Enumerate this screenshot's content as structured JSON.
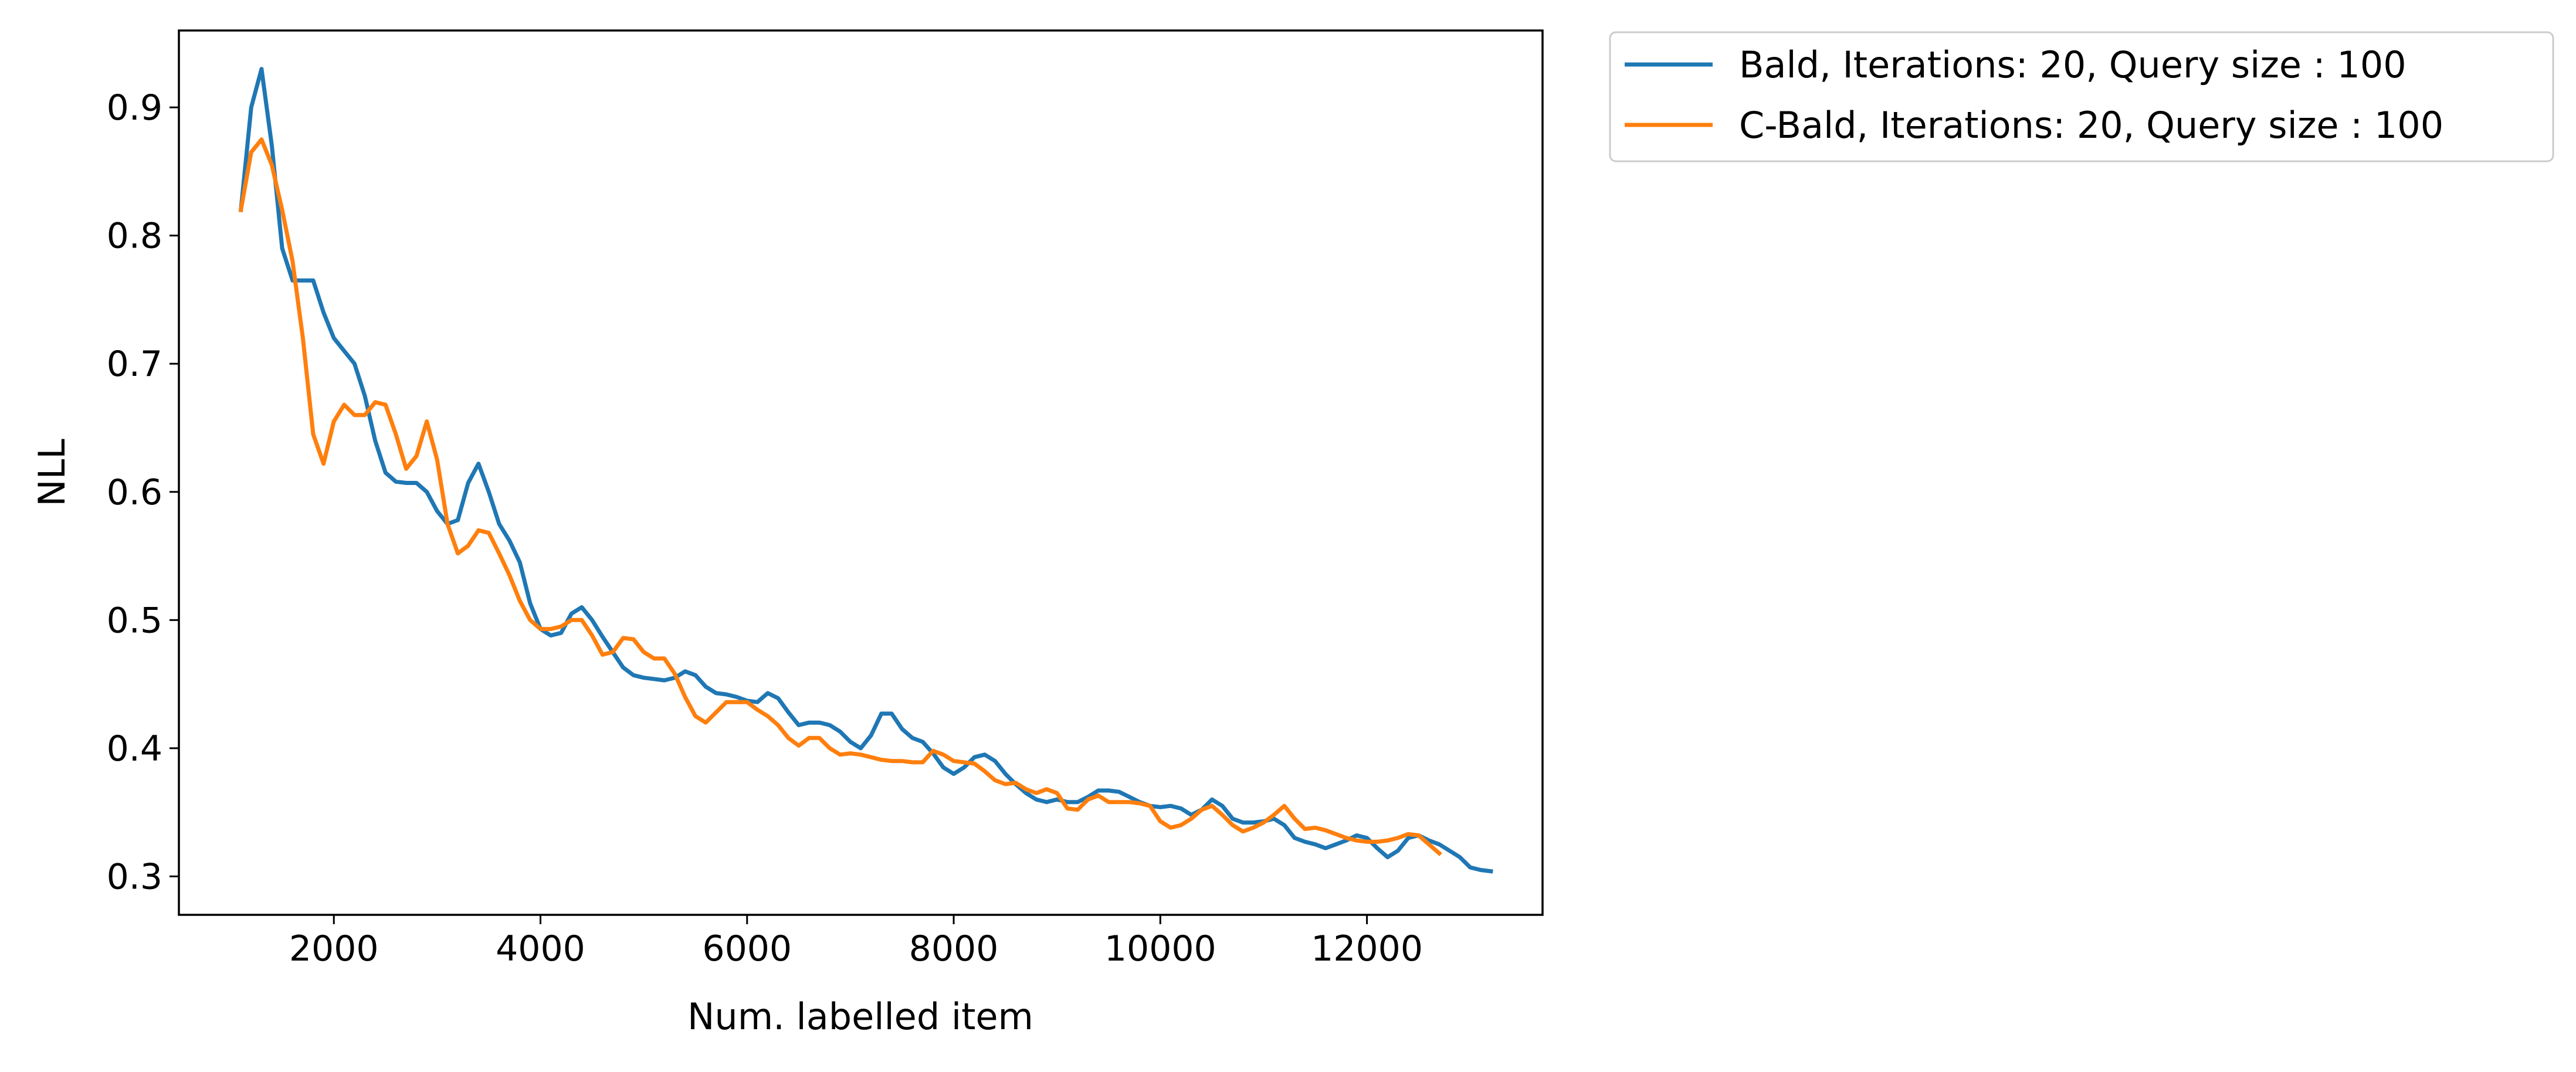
{
  "chart_data": {
    "type": "line",
    "title": "",
    "xlabel": "Num. labelled item",
    "ylabel": "NLL",
    "xlim": [
      500,
      13700
    ],
    "ylim": [
      0.27,
      0.96
    ],
    "x_ticks": [
      2000,
      4000,
      6000,
      8000,
      10000,
      12000
    ],
    "y_ticks": [
      0.3,
      0.4,
      0.5,
      0.6,
      0.7,
      0.8,
      0.9
    ],
    "x_tick_labels": [
      "2000",
      "4000",
      "6000",
      "8000",
      "10000",
      "12000"
    ],
    "y_tick_labels": [
      "0.3",
      "0.4",
      "0.5",
      "0.6",
      "0.7",
      "0.8",
      "0.9"
    ],
    "grid": false,
    "legend_placement": "outside upper right",
    "series": [
      {
        "name": "Bald, Iterations: 20, Query size : 100",
        "color": "#1f77b4",
        "x": [
          1100,
          1200,
          1300,
          1400,
          1500,
          1600,
          1700,
          1800,
          1900,
          2000,
          2100,
          2200,
          2300,
          2400,
          2500,
          2600,
          2700,
          2800,
          2900,
          3000,
          3100,
          3200,
          3300,
          3400,
          3500,
          3600,
          3700,
          3800,
          3900,
          4000,
          4100,
          4200,
          4300,
          4400,
          4500,
          4600,
          4700,
          4800,
          4900,
          5000,
          5100,
          5200,
          5300,
          5400,
          5500,
          5600,
          5700,
          5800,
          5900,
          6000,
          6100,
          6200,
          6300,
          6400,
          6500,
          6600,
          6700,
          6800,
          6900,
          7000,
          7100,
          7200,
          7300,
          7400,
          7500,
          7600,
          7700,
          7800,
          7900,
          8000,
          8100,
          8200,
          8300,
          8400,
          8500,
          8600,
          8700,
          8800,
          8900,
          9000,
          9100,
          9200,
          9300,
          9400,
          9500,
          9600,
          9700,
          9800,
          9900,
          10000,
          10100,
          10200,
          10300,
          10400,
          10500,
          10600,
          10700,
          10800,
          10900,
          11000,
          11100,
          11200,
          11300,
          11400,
          11500,
          11600,
          11700,
          11800,
          11900,
          12000,
          12100,
          12200,
          12300,
          12400,
          12500,
          12600,
          12700,
          12800,
          12900,
          13000,
          13100,
          13200
        ],
        "values": [
          0.82,
          0.9,
          0.93,
          0.87,
          0.79,
          0.765,
          0.765,
          0.765,
          0.74,
          0.72,
          0.71,
          0.7,
          0.675,
          0.64,
          0.615,
          0.608,
          0.607,
          0.607,
          0.6,
          0.585,
          0.575,
          0.578,
          0.607,
          0.622,
          0.6,
          0.575,
          0.562,
          0.545,
          0.513,
          0.493,
          0.488,
          0.49,
          0.505,
          0.51,
          0.5,
          0.487,
          0.475,
          0.463,
          0.457,
          0.455,
          0.454,
          0.453,
          0.455,
          0.46,
          0.457,
          0.448,
          0.443,
          0.442,
          0.44,
          0.437,
          0.436,
          0.443,
          0.439,
          0.428,
          0.418,
          0.42,
          0.42,
          0.418,
          0.413,
          0.405,
          0.4,
          0.41,
          0.427,
          0.427,
          0.415,
          0.408,
          0.405,
          0.396,
          0.385,
          0.38,
          0.385,
          0.393,
          0.395,
          0.39,
          0.38,
          0.372,
          0.365,
          0.36,
          0.358,
          0.36,
          0.358,
          0.358,
          0.362,
          0.367,
          0.367,
          0.366,
          0.362,
          0.358,
          0.355,
          0.354,
          0.355,
          0.353,
          0.348,
          0.352,
          0.36,
          0.355,
          0.345,
          0.342,
          0.342,
          0.343,
          0.345,
          0.34,
          0.33,
          0.327,
          0.325,
          0.322,
          0.325,
          0.328,
          0.332,
          0.33,
          0.322,
          0.315,
          0.32,
          0.33,
          0.332,
          0.328,
          0.325,
          0.32,
          0.315,
          0.307,
          0.305,
          0.304
        ]
      },
      {
        "name": "C-Bald, Iterations: 20, Query size : 100",
        "color": "#ff7f0e",
        "x": [
          1100,
          1200,
          1300,
          1400,
          1500,
          1600,
          1700,
          1800,
          1900,
          2000,
          2100,
          2200,
          2300,
          2400,
          2500,
          2600,
          2700,
          2800,
          2900,
          3000,
          3100,
          3200,
          3300,
          3400,
          3500,
          3600,
          3700,
          3800,
          3900,
          4000,
          4100,
          4200,
          4300,
          4400,
          4500,
          4600,
          4700,
          4800,
          4900,
          5000,
          5100,
          5200,
          5300,
          5400,
          5500,
          5600,
          5700,
          5800,
          5900,
          6000,
          6100,
          6200,
          6300,
          6400,
          6500,
          6600,
          6700,
          6800,
          6900,
          7000,
          7100,
          7200,
          7300,
          7400,
          7500,
          7600,
          7700,
          7800,
          7900,
          8000,
          8100,
          8200,
          8300,
          8400,
          8500,
          8600,
          8700,
          8800,
          8900,
          9000,
          9100,
          9200,
          9300,
          9400,
          9500,
          9600,
          9700,
          9800,
          9900,
          10000,
          10100,
          10200,
          10300,
          10400,
          10500,
          10600,
          10700,
          10800,
          10900,
          11000,
          11100,
          11200,
          11300,
          11400,
          11500,
          11600,
          11700,
          11800,
          11900,
          12000,
          12100,
          12200,
          12300,
          12400,
          12500,
          12600,
          12700
        ],
        "values": [
          0.82,
          0.865,
          0.875,
          0.855,
          0.82,
          0.78,
          0.72,
          0.645,
          0.622,
          0.655,
          0.668,
          0.66,
          0.66,
          0.67,
          0.668,
          0.645,
          0.618,
          0.628,
          0.655,
          0.625,
          0.575,
          0.552,
          0.558,
          0.57,
          0.568,
          0.552,
          0.535,
          0.515,
          0.5,
          0.493,
          0.493,
          0.495,
          0.5,
          0.5,
          0.488,
          0.473,
          0.475,
          0.486,
          0.485,
          0.475,
          0.47,
          0.47,
          0.458,
          0.44,
          0.425,
          0.42,
          0.428,
          0.436,
          0.436,
          0.436,
          0.43,
          0.425,
          0.418,
          0.408,
          0.402,
          0.408,
          0.408,
          0.4,
          0.395,
          0.396,
          0.395,
          0.393,
          0.391,
          0.39,
          0.39,
          0.389,
          0.389,
          0.398,
          0.395,
          0.39,
          0.389,
          0.388,
          0.382,
          0.375,
          0.372,
          0.373,
          0.368,
          0.365,
          0.368,
          0.365,
          0.353,
          0.352,
          0.36,
          0.363,
          0.358,
          0.358,
          0.358,
          0.357,
          0.355,
          0.343,
          0.338,
          0.34,
          0.345,
          0.352,
          0.355,
          0.348,
          0.34,
          0.335,
          0.338,
          0.342,
          0.348,
          0.355,
          0.345,
          0.337,
          0.338,
          0.336,
          0.333,
          0.33,
          0.328,
          0.327,
          0.327,
          0.328,
          0.33,
          0.333,
          0.332,
          0.325,
          0.318
        ]
      }
    ]
  }
}
